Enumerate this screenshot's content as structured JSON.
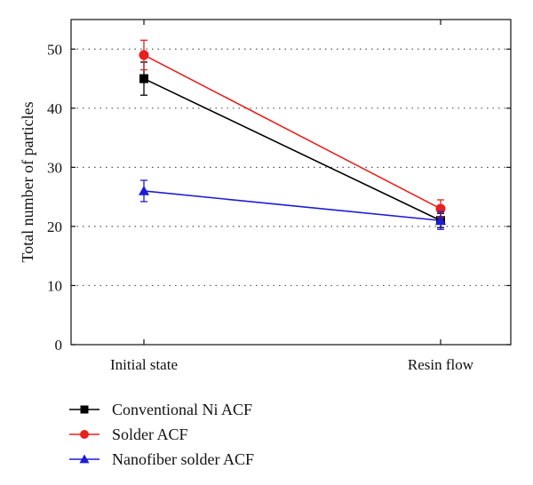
{
  "chart_data": {
    "type": "line",
    "categories": [
      "Initial state",
      "Resin flow"
    ],
    "ylabel": "Total number of particles",
    "ylim": [
      0,
      55
    ],
    "yticks": [
      0,
      10,
      20,
      30,
      40,
      50
    ],
    "grid": "horizontal dotted",
    "legend_position": "bottom-left, below plot",
    "series": [
      {
        "name": "Conventional Ni ACF",
        "color": "#000000",
        "marker": "square",
        "values": [
          45,
          21
        ],
        "errors": [
          2.8,
          1.2
        ]
      },
      {
        "name": "Solder ACF",
        "color": "#e8201e",
        "marker": "circle",
        "values": [
          49,
          23
        ],
        "errors": [
          2.5,
          1.5
        ]
      },
      {
        "name": "Nanofiber solder ACF",
        "color": "#1c1cd8",
        "marker": "triangle",
        "values": [
          26,
          21
        ],
        "errors": [
          1.8,
          1.5
        ]
      }
    ]
  }
}
